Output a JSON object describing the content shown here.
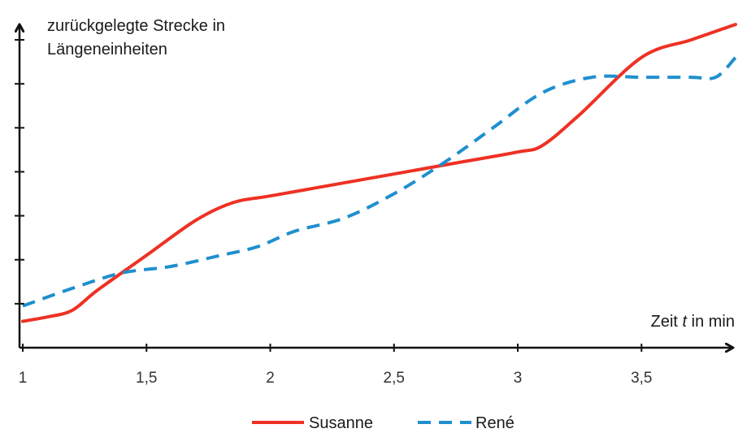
{
  "chart_data": {
    "type": "line",
    "ylabel_line1": "zurückgelegte Strecke in",
    "ylabel_line2": "Längeneinheiten",
    "xlabel_prefix": "Zeit ",
    "xlabel_var": "t",
    "xlabel_suffix": " in min",
    "xlim": [
      1,
      3.88
    ],
    "ylim": [
      0,
      7.5
    ],
    "x_ticks": [
      1,
      1.5,
      2,
      2.5,
      3,
      3.5
    ],
    "x_tick_labels": [
      "1",
      "1,5",
      "2",
      "2,5",
      "3",
      "3,5"
    ],
    "y_ticks": [
      1,
      2,
      3,
      4,
      5,
      6,
      7
    ],
    "grid": false,
    "legend_position": "bottom-center",
    "series": [
      {
        "name": "Susanne",
        "color": "#ee3124",
        "style": "solid",
        "x": [
          1.0,
          1.1,
          1.2,
          1.3,
          1.5,
          1.7,
          1.85,
          2.0,
          2.25,
          2.5,
          2.75,
          3.0,
          3.1,
          3.25,
          3.5,
          3.7,
          3.88
        ],
        "y": [
          0.6,
          0.7,
          0.85,
          1.3,
          2.1,
          2.9,
          3.3,
          3.45,
          3.7,
          3.95,
          4.2,
          4.45,
          4.6,
          5.3,
          6.6,
          7.0,
          7.35
        ]
      },
      {
        "name": "René",
        "color": "#1f8fce",
        "style": "dashed",
        "x": [
          1.0,
          1.2,
          1.4,
          1.6,
          1.8,
          1.95,
          2.1,
          2.3,
          2.5,
          2.7,
          2.9,
          3.1,
          3.3,
          3.5,
          3.7,
          3.8,
          3.88
        ],
        "y": [
          0.95,
          1.35,
          1.7,
          1.85,
          2.1,
          2.3,
          2.65,
          2.95,
          3.5,
          4.2,
          5.0,
          5.8,
          6.15,
          6.15,
          6.15,
          6.15,
          6.6
        ]
      }
    ]
  }
}
